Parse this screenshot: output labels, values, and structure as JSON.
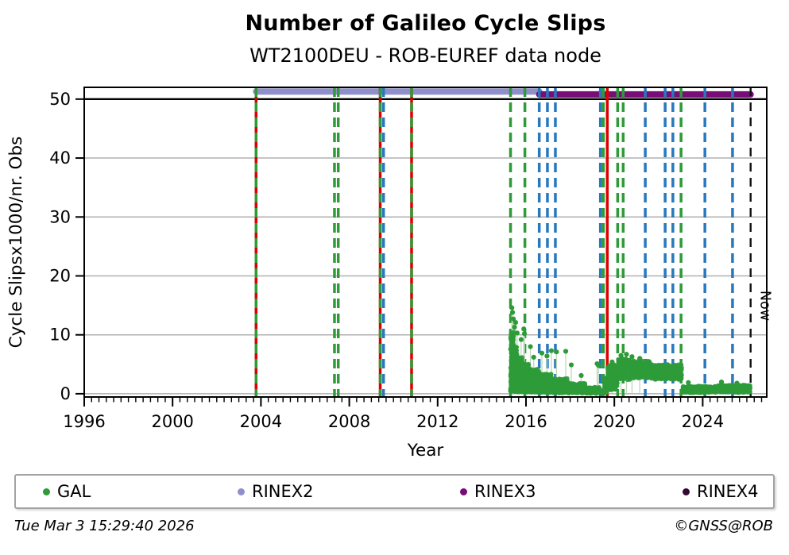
{
  "footer": {
    "timestamp": "Tue Mar  3 15:29:40 2026",
    "copyright": "©GNSS@ROB"
  },
  "legend": {
    "items": [
      {
        "label": "GAL",
        "color": "#2e9b38"
      },
      {
        "label": "RINEX2",
        "color": "#8f8fca"
      },
      {
        "label": "RINEX3",
        "color": "#780d78"
      },
      {
        "label": "RINEX4",
        "color": "#330a33"
      }
    ]
  },
  "chart_data": {
    "type": "scatter",
    "title": "Number of Galileo Cycle Slips",
    "subtitle": "WT2100DEU - ROB-EUREF data node",
    "xlabel": "Year",
    "ylabel": "Cycle Slipsx1000/nr. Obs",
    "xlim": [
      1996,
      2026.9
    ],
    "ylim": [
      -0.55,
      52.0
    ],
    "x_major_ticks": [
      1996,
      2000,
      2004,
      2008,
      2012,
      2016,
      2020,
      2024
    ],
    "x_minor_step_years": 0.33333,
    "y_ticks": [
      0,
      10,
      20,
      30,
      40,
      50
    ],
    "grid_y_values": [
      0,
      10,
      20,
      30,
      40
    ],
    "reference_line_y": 50,
    "grid_on": true,
    "legend_position": "bottom",
    "colors": {
      "gal_green": "#2e9b38",
      "stem_green": "#bcd9b8",
      "event_red": "#dd0000",
      "event_blue": "#2878be",
      "now_black": "#111111",
      "grid_gray": "#b0b0b0",
      "rinex2": "#8f8fca",
      "rinex3": "#780d78",
      "rinex4": "#330a33"
    },
    "bars": [
      {
        "name": "RINEX2",
        "from": 2003.78,
        "to": 2016.6,
        "y": 51.3,
        "color": "#8f8fca"
      },
      {
        "name": "RINEX3",
        "from": 2016.6,
        "to": 2026.17,
        "y": 50.8,
        "color": "#780d78"
      }
    ],
    "event_lines": {
      "red_solid": [
        2003.78,
        2009.4,
        2010.82,
        2019.68
      ],
      "green_dashed": [
        2003.78,
        2007.33,
        2007.5,
        2009.4,
        2010.82,
        2015.3,
        2015.95,
        2019.5,
        2020.15,
        2020.4,
        2023.02
      ],
      "blue_dashed": [
        2009.55,
        2016.6,
        2016.97,
        2017.33,
        2019.37,
        2021.4,
        2022.3,
        2022.65,
        2024.1,
        2025.35
      ],
      "now": 2026.17
    },
    "now_label": "Now",
    "scatter": {
      "seed": 7,
      "segments": [
        {
          "from": 2015.3,
          "to": 2015.45,
          "n": 320,
          "ymin": 0.4,
          "ymax": 10.5,
          "skew": 1.7
        },
        {
          "from": 2015.45,
          "to": 2015.62,
          "n": 300,
          "ymin": 0.4,
          "ymax": 8.0,
          "skew": 1.8
        },
        {
          "from": 2015.62,
          "to": 2015.85,
          "n": 300,
          "ymin": 0.3,
          "ymax": 6.2,
          "skew": 1.7
        },
        {
          "from": 2015.85,
          "to": 2016.15,
          "n": 320,
          "ymin": 0.3,
          "ymax": 5.2,
          "skew": 1.6
        },
        {
          "from": 2016.15,
          "to": 2016.6,
          "n": 300,
          "ymin": 0.25,
          "ymax": 4.2,
          "skew": 1.5
        },
        {
          "from": 2016.6,
          "to": 2017.2,
          "n": 340,
          "ymin": 0.2,
          "ymax": 3.4,
          "skew": 1.4
        },
        {
          "from": 2017.2,
          "to": 2017.9,
          "n": 320,
          "ymin": 0.15,
          "ymax": 2.6,
          "skew": 1.35
        },
        {
          "from": 2017.9,
          "to": 2018.7,
          "n": 300,
          "ymin": 0.1,
          "ymax": 1.8,
          "skew": 1.3
        },
        {
          "from": 2018.7,
          "to": 2019.35,
          "n": 260,
          "ymin": 0.05,
          "ymax": 1.1,
          "skew": 1.2
        },
        {
          "from": 2019.5,
          "to": 2019.68,
          "n": 50,
          "ymin": 0.1,
          "ymax": 2.8,
          "skew": 1.5
        },
        {
          "from": 2019.68,
          "to": 2020.15,
          "n": 160,
          "ymin": 0.6,
          "ymax": 5.0,
          "skew": 1.1
        },
        {
          "from": 2020.15,
          "to": 2020.7,
          "n": 200,
          "ymin": 2.4,
          "ymax": 6.0,
          "skew": 1.0
        },
        {
          "from": 2020.7,
          "to": 2021.6,
          "n": 320,
          "ymin": 2.6,
          "ymax": 5.6,
          "skew": 1.0
        },
        {
          "from": 2021.6,
          "to": 2023.05,
          "n": 480,
          "ymin": 2.4,
          "ymax": 5.0,
          "skew": 1.0
        },
        {
          "from": 2023.1,
          "to": 2024.6,
          "n": 420,
          "ymin": 0.15,
          "ymax": 1.3,
          "skew": 1.0
        },
        {
          "from": 2024.6,
          "to": 2026.15,
          "n": 440,
          "ymin": 0.2,
          "ymax": 1.5,
          "skew": 1.0
        }
      ],
      "spikes": [
        [
          2015.36,
          14.6
        ],
        [
          2015.39,
          13.8
        ],
        [
          2015.43,
          12.7
        ],
        [
          2015.48,
          11.3
        ],
        [
          2015.53,
          12.1
        ],
        [
          2015.6,
          10.3
        ],
        [
          2015.78,
          9.2
        ],
        [
          2015.9,
          11.0
        ],
        [
          2015.93,
          10.2
        ],
        [
          2016.2,
          8.0
        ],
        [
          2016.35,
          6.2
        ],
        [
          2016.72,
          6.9
        ],
        [
          2016.95,
          6.4
        ],
        [
          2017.15,
          7.3
        ],
        [
          2017.38,
          7.1
        ],
        [
          2017.8,
          7.2
        ],
        [
          2018.05,
          4.9
        ],
        [
          2018.5,
          3.1
        ],
        [
          2019.22,
          5.1
        ],
        [
          2019.28,
          4.8
        ],
        [
          2019.9,
          5.4
        ],
        [
          2020.3,
          6.5
        ],
        [
          2020.55,
          6.7
        ],
        [
          2020.8,
          6.3
        ],
        [
          2021.15,
          6.0
        ],
        [
          2023.35,
          1.9
        ],
        [
          2024.85,
          2.0
        ],
        [
          2025.55,
          1.8
        ]
      ]
    }
  }
}
